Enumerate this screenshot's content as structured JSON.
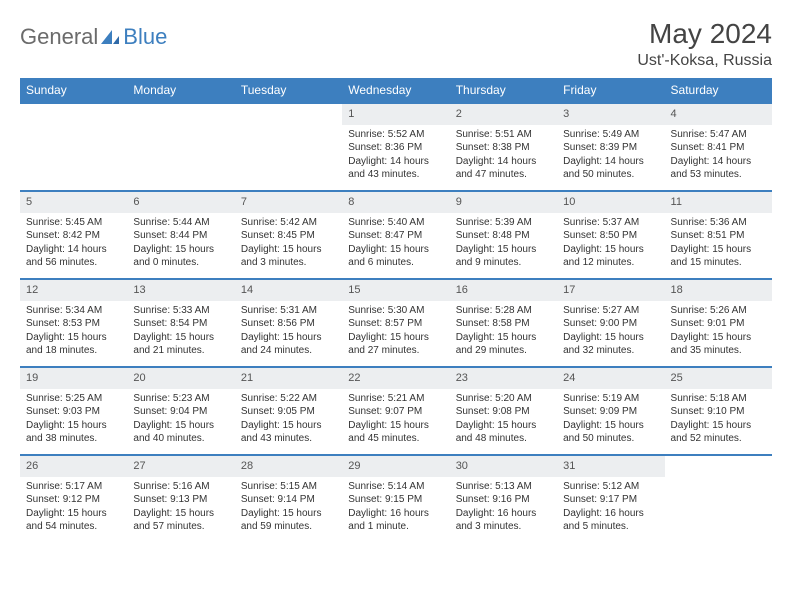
{
  "brand": {
    "part1": "General",
    "part2": "Blue"
  },
  "title": "May 2024",
  "location": "Ust'-Koksa, Russia",
  "colors": {
    "header_bg": "#3d7fbf",
    "header_fg": "#ffffff",
    "daynum_bg": "#eceef0",
    "border": "#3d7fbf",
    "brand_gray": "#6b6b6b",
    "brand_blue": "#3d7fbf"
  },
  "weekdays": [
    "Sunday",
    "Monday",
    "Tuesday",
    "Wednesday",
    "Thursday",
    "Friday",
    "Saturday"
  ],
  "days": [
    {
      "n": "",
      "sr": "",
      "ss": "",
      "dl1": "",
      "dl2": ""
    },
    {
      "n": "",
      "sr": "",
      "ss": "",
      "dl1": "",
      "dl2": ""
    },
    {
      "n": "",
      "sr": "",
      "ss": "",
      "dl1": "",
      "dl2": ""
    },
    {
      "n": "1",
      "sr": "Sunrise: 5:52 AM",
      "ss": "Sunset: 8:36 PM",
      "dl1": "Daylight: 14 hours",
      "dl2": "and 43 minutes."
    },
    {
      "n": "2",
      "sr": "Sunrise: 5:51 AM",
      "ss": "Sunset: 8:38 PM",
      "dl1": "Daylight: 14 hours",
      "dl2": "and 47 minutes."
    },
    {
      "n": "3",
      "sr": "Sunrise: 5:49 AM",
      "ss": "Sunset: 8:39 PM",
      "dl1": "Daylight: 14 hours",
      "dl2": "and 50 minutes."
    },
    {
      "n": "4",
      "sr": "Sunrise: 5:47 AM",
      "ss": "Sunset: 8:41 PM",
      "dl1": "Daylight: 14 hours",
      "dl2": "and 53 minutes."
    },
    {
      "n": "5",
      "sr": "Sunrise: 5:45 AM",
      "ss": "Sunset: 8:42 PM",
      "dl1": "Daylight: 14 hours",
      "dl2": "and 56 minutes."
    },
    {
      "n": "6",
      "sr": "Sunrise: 5:44 AM",
      "ss": "Sunset: 8:44 PM",
      "dl1": "Daylight: 15 hours",
      "dl2": "and 0 minutes."
    },
    {
      "n": "7",
      "sr": "Sunrise: 5:42 AM",
      "ss": "Sunset: 8:45 PM",
      "dl1": "Daylight: 15 hours",
      "dl2": "and 3 minutes."
    },
    {
      "n": "8",
      "sr": "Sunrise: 5:40 AM",
      "ss": "Sunset: 8:47 PM",
      "dl1": "Daylight: 15 hours",
      "dl2": "and 6 minutes."
    },
    {
      "n": "9",
      "sr": "Sunrise: 5:39 AM",
      "ss": "Sunset: 8:48 PM",
      "dl1": "Daylight: 15 hours",
      "dl2": "and 9 minutes."
    },
    {
      "n": "10",
      "sr": "Sunrise: 5:37 AM",
      "ss": "Sunset: 8:50 PM",
      "dl1": "Daylight: 15 hours",
      "dl2": "and 12 minutes."
    },
    {
      "n": "11",
      "sr": "Sunrise: 5:36 AM",
      "ss": "Sunset: 8:51 PM",
      "dl1": "Daylight: 15 hours",
      "dl2": "and 15 minutes."
    },
    {
      "n": "12",
      "sr": "Sunrise: 5:34 AM",
      "ss": "Sunset: 8:53 PM",
      "dl1": "Daylight: 15 hours",
      "dl2": "and 18 minutes."
    },
    {
      "n": "13",
      "sr": "Sunrise: 5:33 AM",
      "ss": "Sunset: 8:54 PM",
      "dl1": "Daylight: 15 hours",
      "dl2": "and 21 minutes."
    },
    {
      "n": "14",
      "sr": "Sunrise: 5:31 AM",
      "ss": "Sunset: 8:56 PM",
      "dl1": "Daylight: 15 hours",
      "dl2": "and 24 minutes."
    },
    {
      "n": "15",
      "sr": "Sunrise: 5:30 AM",
      "ss": "Sunset: 8:57 PM",
      "dl1": "Daylight: 15 hours",
      "dl2": "and 27 minutes."
    },
    {
      "n": "16",
      "sr": "Sunrise: 5:28 AM",
      "ss": "Sunset: 8:58 PM",
      "dl1": "Daylight: 15 hours",
      "dl2": "and 29 minutes."
    },
    {
      "n": "17",
      "sr": "Sunrise: 5:27 AM",
      "ss": "Sunset: 9:00 PM",
      "dl1": "Daylight: 15 hours",
      "dl2": "and 32 minutes."
    },
    {
      "n": "18",
      "sr": "Sunrise: 5:26 AM",
      "ss": "Sunset: 9:01 PM",
      "dl1": "Daylight: 15 hours",
      "dl2": "and 35 minutes."
    },
    {
      "n": "19",
      "sr": "Sunrise: 5:25 AM",
      "ss": "Sunset: 9:03 PM",
      "dl1": "Daylight: 15 hours",
      "dl2": "and 38 minutes."
    },
    {
      "n": "20",
      "sr": "Sunrise: 5:23 AM",
      "ss": "Sunset: 9:04 PM",
      "dl1": "Daylight: 15 hours",
      "dl2": "and 40 minutes."
    },
    {
      "n": "21",
      "sr": "Sunrise: 5:22 AM",
      "ss": "Sunset: 9:05 PM",
      "dl1": "Daylight: 15 hours",
      "dl2": "and 43 minutes."
    },
    {
      "n": "22",
      "sr": "Sunrise: 5:21 AM",
      "ss": "Sunset: 9:07 PM",
      "dl1": "Daylight: 15 hours",
      "dl2": "and 45 minutes."
    },
    {
      "n": "23",
      "sr": "Sunrise: 5:20 AM",
      "ss": "Sunset: 9:08 PM",
      "dl1": "Daylight: 15 hours",
      "dl2": "and 48 minutes."
    },
    {
      "n": "24",
      "sr": "Sunrise: 5:19 AM",
      "ss": "Sunset: 9:09 PM",
      "dl1": "Daylight: 15 hours",
      "dl2": "and 50 minutes."
    },
    {
      "n": "25",
      "sr": "Sunrise: 5:18 AM",
      "ss": "Sunset: 9:10 PM",
      "dl1": "Daylight: 15 hours",
      "dl2": "and 52 minutes."
    },
    {
      "n": "26",
      "sr": "Sunrise: 5:17 AM",
      "ss": "Sunset: 9:12 PM",
      "dl1": "Daylight: 15 hours",
      "dl2": "and 54 minutes."
    },
    {
      "n": "27",
      "sr": "Sunrise: 5:16 AM",
      "ss": "Sunset: 9:13 PM",
      "dl1": "Daylight: 15 hours",
      "dl2": "and 57 minutes."
    },
    {
      "n": "28",
      "sr": "Sunrise: 5:15 AM",
      "ss": "Sunset: 9:14 PM",
      "dl1": "Daylight: 15 hours",
      "dl2": "and 59 minutes."
    },
    {
      "n": "29",
      "sr": "Sunrise: 5:14 AM",
      "ss": "Sunset: 9:15 PM",
      "dl1": "Daylight: 16 hours",
      "dl2": "and 1 minute."
    },
    {
      "n": "30",
      "sr": "Sunrise: 5:13 AM",
      "ss": "Sunset: 9:16 PM",
      "dl1": "Daylight: 16 hours",
      "dl2": "and 3 minutes."
    },
    {
      "n": "31",
      "sr": "Sunrise: 5:12 AM",
      "ss": "Sunset: 9:17 PM",
      "dl1": "Daylight: 16 hours",
      "dl2": "and 5 minutes."
    },
    {
      "n": "",
      "sr": "",
      "ss": "",
      "dl1": "",
      "dl2": ""
    }
  ]
}
